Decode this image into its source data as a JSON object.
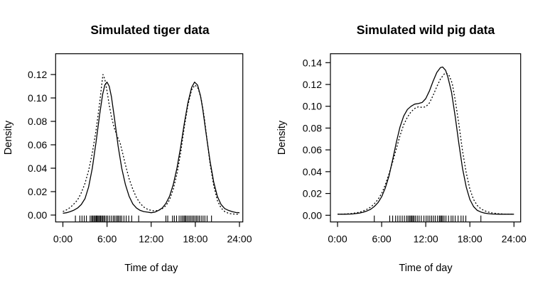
{
  "figure": {
    "background_color": "#ffffff",
    "foreground_color": "#000000",
    "panel_count": 2
  },
  "chart_data": [
    {
      "type": "line",
      "title": "Simulated tiger data",
      "xlabel": "Time of day",
      "ylabel": "Density",
      "xlim_hours": [
        0,
        24
      ],
      "ylim": [
        0.0,
        0.12
      ],
      "grid": false,
      "legend": "none",
      "xtick_hours": [
        0,
        6,
        12,
        18,
        24
      ],
      "xtick_labels": [
        "0:00",
        "6:00",
        "12:00",
        "18:00",
        "24:00"
      ],
      "ytick_values": [
        0.0,
        0.02,
        0.04,
        0.06,
        0.08,
        0.1,
        0.12
      ],
      "ytick_labels": [
        "0.00",
        "0.02",
        "0.04",
        "0.06",
        "0.08",
        "0.10",
        "0.12"
      ],
      "series": [
        {
          "name": "solid-density-curve",
          "style": "solid",
          "points": [
            [
              0,
              0.0015
            ],
            [
              0.5,
              0.002
            ],
            [
              1,
              0.003
            ],
            [
              1.5,
              0.0042
            ],
            [
              2,
              0.006
            ],
            [
              2.5,
              0.009
            ],
            [
              3,
              0.014
            ],
            [
              3.5,
              0.024
            ],
            [
              4,
              0.04
            ],
            [
              4.5,
              0.062
            ],
            [
              5,
              0.086
            ],
            [
              5.4,
              0.103
            ],
            [
              5.7,
              0.111
            ],
            [
              6,
              0.1135
            ],
            [
              6.3,
              0.11
            ],
            [
              6.6,
              0.101
            ],
            [
              7,
              0.083
            ],
            [
              7.5,
              0.059
            ],
            [
              8,
              0.04
            ],
            [
              8.5,
              0.026
            ],
            [
              9,
              0.016
            ],
            [
              9.5,
              0.0095
            ],
            [
              10,
              0.006
            ],
            [
              10.5,
              0.004
            ],
            [
              11,
              0.003
            ],
            [
              11.5,
              0.0025
            ],
            [
              12,
              0.002
            ],
            [
              12.5,
              0.0025
            ],
            [
              13,
              0.004
            ],
            [
              13.5,
              0.006
            ],
            [
              14,
              0.01
            ],
            [
              14.5,
              0.016
            ],
            [
              15,
              0.026
            ],
            [
              15.5,
              0.04
            ],
            [
              16,
              0.058
            ],
            [
              16.5,
              0.078
            ],
            [
              17,
              0.096
            ],
            [
              17.5,
              0.109
            ],
            [
              17.9,
              0.1135
            ],
            [
              18.3,
              0.111
            ],
            [
              18.7,
              0.102
            ],
            [
              19,
              0.091
            ],
            [
              19.5,
              0.068
            ],
            [
              20,
              0.046
            ],
            [
              20.5,
              0.028
            ],
            [
              21,
              0.016
            ],
            [
              21.5,
              0.009
            ],
            [
              22,
              0.0055
            ],
            [
              22.5,
              0.004
            ],
            [
              23,
              0.003
            ],
            [
              23.5,
              0.0022
            ],
            [
              24,
              0.002
            ]
          ]
        },
        {
          "name": "dotted-density-curve",
          "style": "dotted",
          "points": [
            [
              0,
              0.003
            ],
            [
              0.5,
              0.0045
            ],
            [
              1,
              0.0065
            ],
            [
              1.5,
              0.0095
            ],
            [
              2,
              0.013
            ],
            [
              2.5,
              0.019
            ],
            [
              3,
              0.027
            ],
            [
              3.5,
              0.038
            ],
            [
              4,
              0.053
            ],
            [
              4.5,
              0.072
            ],
            [
              5,
              0.096
            ],
            [
              5.25,
              0.11
            ],
            [
              5.45,
              0.12
            ],
            [
              5.7,
              0.116
            ],
            [
              6,
              0.106
            ],
            [
              6.3,
              0.094
            ],
            [
              6.6,
              0.084
            ],
            [
              7,
              0.074
            ],
            [
              7.4,
              0.067
            ],
            [
              7.8,
              0.061
            ],
            [
              8,
              0.056
            ],
            [
              8.5,
              0.043
            ],
            [
              9,
              0.031
            ],
            [
              9.5,
              0.022
            ],
            [
              10,
              0.015
            ],
            [
              10.5,
              0.01
            ],
            [
              11,
              0.0068
            ],
            [
              11.5,
              0.005
            ],
            [
              12,
              0.004
            ],
            [
              12.5,
              0.0035
            ],
            [
              13,
              0.004
            ],
            [
              13.5,
              0.0055
            ],
            [
              14,
              0.008
            ],
            [
              14.5,
              0.013
            ],
            [
              15,
              0.022
            ],
            [
              15.5,
              0.035
            ],
            [
              16,
              0.053
            ],
            [
              16.5,
              0.075
            ],
            [
              17,
              0.094
            ],
            [
              17.5,
              0.107
            ],
            [
              17.95,
              0.111
            ],
            [
              18.4,
              0.108
            ],
            [
              18.8,
              0.099
            ],
            [
              19.2,
              0.084
            ],
            [
              19.6,
              0.064
            ],
            [
              20,
              0.044
            ],
            [
              20.5,
              0.025
            ],
            [
              21,
              0.0125
            ],
            [
              21.5,
              0.006
            ],
            [
              22,
              0.003
            ],
            [
              22.5,
              0.0015
            ],
            [
              23,
              0.001
            ],
            [
              23.5,
              0.0008
            ],
            [
              24,
              0.0008
            ]
          ]
        }
      ],
      "rug_hours": [
        1.7,
        2.3,
        2.6,
        2.9,
        3.2,
        3.7,
        3.9,
        4.05,
        4.2,
        4.35,
        4.5,
        4.6,
        4.7,
        4.85,
        5.0,
        5.1,
        5.25,
        5.4,
        5.55,
        5.7,
        5.9,
        6.1,
        6.35,
        6.6,
        6.85,
        7.05,
        7.25,
        7.45,
        7.6,
        7.8,
        8.0,
        8.3,
        8.6,
        8.95,
        9.35,
        10.3,
        14.0,
        14.25,
        14.9,
        15.15,
        15.45,
        15.8,
        16.05,
        16.25,
        16.45,
        16.6,
        16.75,
        16.95,
        17.15,
        17.35,
        17.55,
        17.75,
        17.95,
        18.15,
        18.35,
        18.55,
        18.8,
        19.05,
        19.3,
        19.6,
        20.2
      ]
    },
    {
      "type": "line",
      "title": "Simulated wild pig data",
      "xlabel": "Time of day",
      "ylabel": "Density",
      "xlim_hours": [
        0,
        24
      ],
      "ylim": [
        0.0,
        0.14
      ],
      "grid": false,
      "legend": "none",
      "xtick_hours": [
        0,
        6,
        12,
        18,
        24
      ],
      "xtick_labels": [
        "0:00",
        "6:00",
        "12:00",
        "18:00",
        "24:00"
      ],
      "ytick_values": [
        0.0,
        0.02,
        0.04,
        0.06,
        0.08,
        0.1,
        0.12,
        0.14
      ],
      "ytick_labels": [
        "0.00",
        "0.02",
        "0.04",
        "0.06",
        "0.08",
        "0.10",
        "0.12",
        "0.14"
      ],
      "series": [
        {
          "name": "solid-density-curve",
          "style": "solid",
          "points": [
            [
              0,
              0.001
            ],
            [
              1,
              0.001
            ],
            [
              2,
              0.0012
            ],
            [
              3,
              0.002
            ],
            [
              3.5,
              0.0028
            ],
            [
              4,
              0.004
            ],
            [
              4.5,
              0.0055
            ],
            [
              5,
              0.008
            ],
            [
              5.5,
              0.0115
            ],
            [
              6,
              0.017
            ],
            [
              6.5,
              0.025
            ],
            [
              7,
              0.036
            ],
            [
              7.5,
              0.051
            ],
            [
              8,
              0.067
            ],
            [
              8.5,
              0.081
            ],
            [
              9,
              0.091
            ],
            [
              9.5,
              0.097
            ],
            [
              10,
              0.1
            ],
            [
              10.5,
              0.102
            ],
            [
              11,
              0.1025
            ],
            [
              11.5,
              0.1035
            ],
            [
              12,
              0.107
            ],
            [
              12.5,
              0.114
            ],
            [
              13,
              0.123
            ],
            [
              13.5,
              0.131
            ],
            [
              14,
              0.1355
            ],
            [
              14.3,
              0.136
            ],
            [
              14.7,
              0.133
            ],
            [
              15,
              0.127
            ],
            [
              15.5,
              0.113
            ],
            [
              16,
              0.091
            ],
            [
              16.5,
              0.066
            ],
            [
              17,
              0.043
            ],
            [
              17.5,
              0.026
            ],
            [
              18,
              0.0145
            ],
            [
              18.5,
              0.008
            ],
            [
              19,
              0.0045
            ],
            [
              19.5,
              0.003
            ],
            [
              20,
              0.002
            ],
            [
              20.5,
              0.0015
            ],
            [
              21,
              0.0012
            ],
            [
              22,
              0.001
            ],
            [
              23,
              0.001
            ],
            [
              24,
              0.001
            ]
          ]
        },
        {
          "name": "dotted-density-curve",
          "style": "dotted",
          "points": [
            [
              0,
              0.001
            ],
            [
              1,
              0.0012
            ],
            [
              2,
              0.0016
            ],
            [
              3,
              0.0028
            ],
            [
              3.5,
              0.004
            ],
            [
              4,
              0.0055
            ],
            [
              4.5,
              0.0075
            ],
            [
              5,
              0.0105
            ],
            [
              5.5,
              0.0145
            ],
            [
              6,
              0.02
            ],
            [
              6.5,
              0.028
            ],
            [
              7,
              0.038
            ],
            [
              7.5,
              0.049
            ],
            [
              8,
              0.061
            ],
            [
              8.5,
              0.073
            ],
            [
              9,
              0.083
            ],
            [
              9.5,
              0.09
            ],
            [
              10,
              0.095
            ],
            [
              10.5,
              0.098
            ],
            [
              11,
              0.0995
            ],
            [
              11.5,
              0.099
            ],
            [
              12,
              0.0995
            ],
            [
              12.5,
              0.103
            ],
            [
              13,
              0.11
            ],
            [
              13.5,
              0.118
            ],
            [
              14,
              0.125
            ],
            [
              14.5,
              0.1295
            ],
            [
              14.8,
              0.1305
            ],
            [
              15.2,
              0.128
            ],
            [
              15.6,
              0.121
            ],
            [
              16,
              0.106
            ],
            [
              16.5,
              0.084
            ],
            [
              17,
              0.059
            ],
            [
              17.5,
              0.039
            ],
            [
              18,
              0.024
            ],
            [
              18.5,
              0.0145
            ],
            [
              19,
              0.009
            ],
            [
              19.5,
              0.006
            ],
            [
              20,
              0.0042
            ],
            [
              20.5,
              0.003
            ],
            [
              21,
              0.0022
            ],
            [
              21.5,
              0.0017
            ],
            [
              22,
              0.0014
            ],
            [
              23,
              0.001
            ],
            [
              24,
              0.001
            ]
          ]
        }
      ],
      "rug_hours": [
        5.0,
        7.1,
        7.5,
        7.9,
        8.2,
        8.5,
        8.8,
        9.1,
        9.4,
        9.6,
        9.8,
        9.95,
        10.1,
        10.25,
        10.4,
        10.6,
        10.85,
        11.1,
        11.4,
        11.75,
        12.05,
        12.3,
        12.55,
        12.8,
        13.05,
        13.3,
        13.6,
        13.85,
        14.0,
        14.15,
        14.3,
        14.5,
        14.75,
        15.1,
        15.45,
        15.7,
        16.0,
        16.4,
        16.8,
        17.1,
        17.45,
        19.5
      ]
    }
  ]
}
